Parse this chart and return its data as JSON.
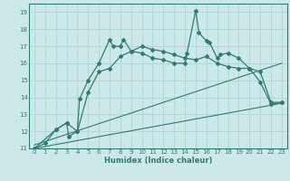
{
  "xlabel": "Humidex (Indice chaleur)",
  "bg_color": "#cce8e8",
  "line_color": "#2e7d72",
  "grid_color": "#b0d8d8",
  "xlim": [
    -0.5,
    23.5
  ],
  "ylim": [
    11,
    19.5
  ],
  "xticks": [
    0,
    1,
    2,
    3,
    4,
    5,
    6,
    7,
    8,
    9,
    10,
    11,
    12,
    13,
    14,
    15,
    16,
    17,
    18,
    19,
    20,
    21,
    22,
    23
  ],
  "yticks": [
    11,
    12,
    13,
    14,
    15,
    16,
    17,
    18,
    19
  ],
  "series1_x": [
    0,
    1,
    2,
    3,
    3.2,
    4,
    4.2,
    5,
    6,
    7,
    7.3,
    8,
    8.3,
    9,
    10,
    11,
    12,
    13,
    14,
    14.2,
    15,
    15.3,
    16,
    16.3,
    17,
    17.3,
    18,
    19,
    20,
    21,
    22,
    23
  ],
  "series1_y": [
    11,
    11.3,
    12.1,
    12.5,
    11.7,
    12.0,
    13.9,
    15.0,
    16.0,
    17.4,
    17.0,
    17.0,
    17.4,
    16.7,
    16.6,
    16.3,
    16.2,
    16.0,
    16.0,
    16.6,
    19.1,
    17.8,
    17.3,
    17.2,
    16.3,
    16.5,
    16.6,
    16.3,
    15.7,
    14.9,
    13.6,
    13.7
  ],
  "series2_x": [
    0,
    2,
    3,
    4,
    5,
    6,
    7,
    8,
    9,
    10,
    11,
    12,
    13,
    14,
    15,
    16,
    17,
    18,
    19,
    20,
    21,
    22,
    23
  ],
  "series2_y": [
    11,
    12.1,
    12.5,
    12.0,
    14.3,
    15.5,
    15.7,
    16.4,
    16.7,
    17.0,
    16.8,
    16.7,
    16.5,
    16.3,
    16.2,
    16.4,
    16.0,
    15.8,
    15.7,
    15.7,
    15.5,
    13.7,
    13.7
  ],
  "line3_x": [
    0,
    23
  ],
  "line3_y": [
    11.0,
    13.65
  ],
  "line4_x": [
    0,
    23
  ],
  "line4_y": [
    11.2,
    16.0
  ]
}
